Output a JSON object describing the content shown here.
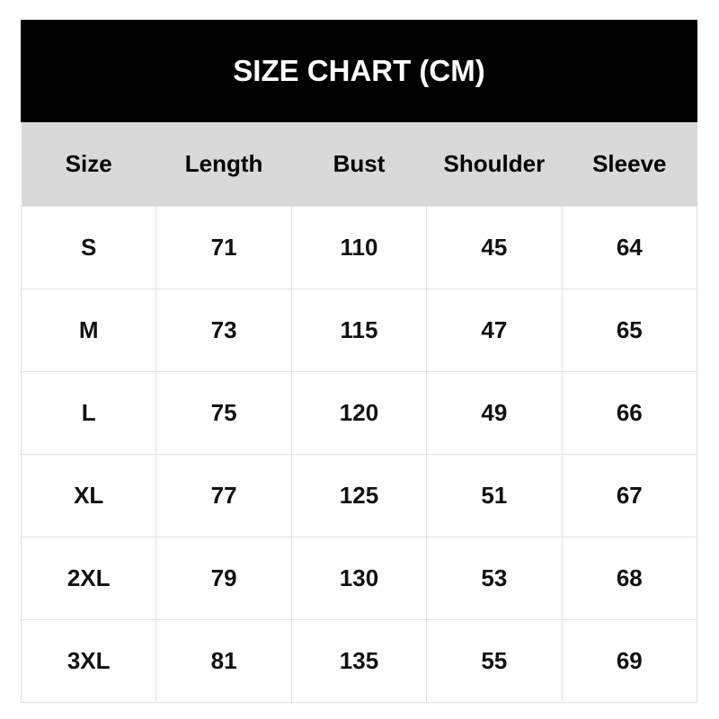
{
  "chart_data": {
    "type": "table",
    "title": "SIZE CHART (CM)",
    "columns": [
      "Size",
      "Length",
      "Bust",
      "Shoulder",
      "Sleeve"
    ],
    "rows": [
      [
        "S",
        "71",
        "110",
        "45",
        "64"
      ],
      [
        "M",
        "73",
        "115",
        "47",
        "65"
      ],
      [
        "L",
        "75",
        "120",
        "49",
        "66"
      ],
      [
        "XL",
        "77",
        "125",
        "51",
        "67"
      ],
      [
        "2XL",
        "79",
        "130",
        "53",
        "68"
      ],
      [
        "3XL",
        "81",
        "135",
        "55",
        "69"
      ]
    ],
    "colors": {
      "title_bg": "#000000",
      "header_bg": "#d9d9d9",
      "border": "#e2e2e2"
    }
  }
}
